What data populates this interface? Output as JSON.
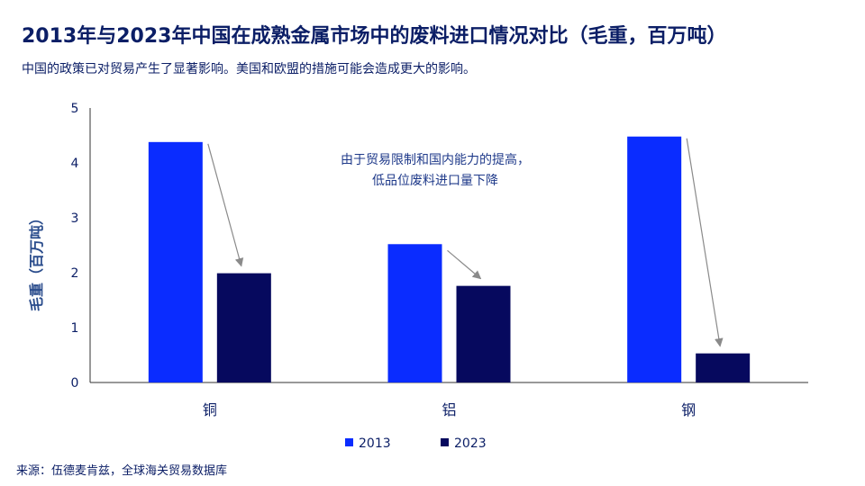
{
  "title": "2013年与2023年中国在成熟金属市场中的废料进口情况对比（毛重，百万吨）",
  "subtitle": "中国的政策已对贸易产生了显著影响。美国和欧盟的措施可能会造成更大的影响。",
  "source": "来源：伍德麦肯兹，全球海关贸易数据库",
  "colors": {
    "s2013": "#0a2cff",
    "s2023": "#06095e",
    "axis": "#333333",
    "arrow": "#8a8a8a"
  },
  "chart_data": {
    "type": "bar",
    "title": "2013年与2023年中国在成熟金属市场中的废料进口情况对比（毛重，百万吨）",
    "xlabel": "",
    "ylabel": "毛重（百万吨）",
    "ylim": [
      0,
      5
    ],
    "yticks": [
      "0",
      "1",
      "2",
      "3",
      "4",
      "5"
    ],
    "categories": [
      "铜",
      "铝",
      "钢"
    ],
    "series": [
      {
        "name": "2013",
        "values": [
          4.38,
          2.52,
          4.48
        ]
      },
      {
        "name": "2023",
        "values": [
          1.99,
          1.76,
          0.53
        ]
      }
    ],
    "annotation": [
      "由于贸易限制和国内能力的提高，",
      "低品位废料进口量下降"
    ],
    "legend_position": "bottom-center"
  }
}
